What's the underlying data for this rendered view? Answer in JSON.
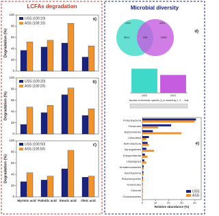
{
  "panel_titles": [
    "LCFAs degradation",
    "Microbial diversity"
  ],
  "chart_data": [
    {
      "type": "bar",
      "panel": "a)",
      "ylabel": "Degradation (%)",
      "categories": [
        null,
        null,
        null,
        null
      ],
      "series": [
        {
          "name": "USS (100:10)",
          "color": "#1a237e",
          "values": [
            37,
            43,
            50,
            25
          ]
        },
        {
          "name": "ASS (100:10)",
          "color": "#f0932b",
          "values": [
            52,
            55,
            85,
            45
          ]
        }
      ],
      "ylim": [
        0,
        100
      ],
      "yticks": [
        0,
        20,
        40,
        60,
        80,
        100
      ]
    },
    {
      "type": "bar",
      "panel": "b)",
      "ylabel": "Degradation (%)",
      "categories": [
        null,
        null,
        null,
        null
      ],
      "series": [
        {
          "name": "USS (100:20)",
          "color": "#1a237e",
          "values": [
            17,
            38,
            70,
            33
          ]
        },
        {
          "name": "ASS (100:20)",
          "color": "#f0932b",
          "values": [
            48,
            51,
            82,
            45
          ]
        }
      ],
      "ylim": [
        0,
        100
      ],
      "yticks": [
        0,
        20,
        40,
        60,
        80,
        100
      ]
    },
    {
      "type": "bar",
      "panel": "c)",
      "ylabel": "Degradation (%)",
      "categories": [
        "Myristic acid",
        "Palmitic acid",
        "Stearic acid",
        "Oleic acid"
      ],
      "series": [
        {
          "name": "USS (100:50)",
          "color": "#1a237e",
          "values": [
            27,
            30,
            50,
            35
          ]
        },
        {
          "name": "ASS (100:50)",
          "color": "#f0932b",
          "values": [
            43,
            37,
            83,
            37
          ]
        }
      ],
      "ylim": [
        0,
        100
      ],
      "yticks": [
        0,
        20,
        40,
        60,
        80,
        100
      ]
    },
    {
      "type": "venn",
      "panel": "d)",
      "sets": [
        {
          "name": "USS",
          "color": "#3fd9c9",
          "value": 4611
        },
        {
          "name": "ASS",
          "color": "#c65ce0",
          "value": 3336
        }
      ],
      "shared": 328
    },
    {
      "type": "count",
      "xlabel": "Number of elements: specific (1) or shared by 2, 3, ... lists",
      "categories": [
        "USS",
        "ASS"
      ],
      "values": [
        4939,
        3664
      ],
      "colors": [
        "#3fd9c9",
        "#c65ce0"
      ],
      "ylim": [
        0,
        5000
      ]
    },
    {
      "type": "barh",
      "panel": "e)",
      "xlabel": "Relative abundance (%)",
      "categories": [
        "Proteobacteria",
        "Firmicutes",
        "Bacteroidetes",
        "Chloroflexi",
        "Actinobacteria",
        "Synergistetes",
        "Euryarchaeota",
        "Unassigned",
        "Armatimonadetes",
        "Acidobacteria",
        "Planctomycetes",
        "Tenericutes",
        "Chlorobi",
        "Cloacimonetes"
      ],
      "series": [
        {
          "name": "USS",
          "color": "#1a237e",
          "values": [
            41,
            22,
            8,
            5,
            4,
            3,
            2,
            1.5,
            1,
            0.8,
            0.5,
            0.3,
            0.2,
            0.1
          ]
        },
        {
          "name": "ASS",
          "color": "#f0932b",
          "values": [
            40,
            12,
            30,
            3,
            5,
            9,
            4,
            3,
            1,
            1,
            0.7,
            0.3,
            0.5,
            0.2
          ]
        }
      ],
      "xlim": [
        0,
        45
      ],
      "xticks": [
        0,
        10,
        20,
        30,
        40
      ]
    }
  ]
}
